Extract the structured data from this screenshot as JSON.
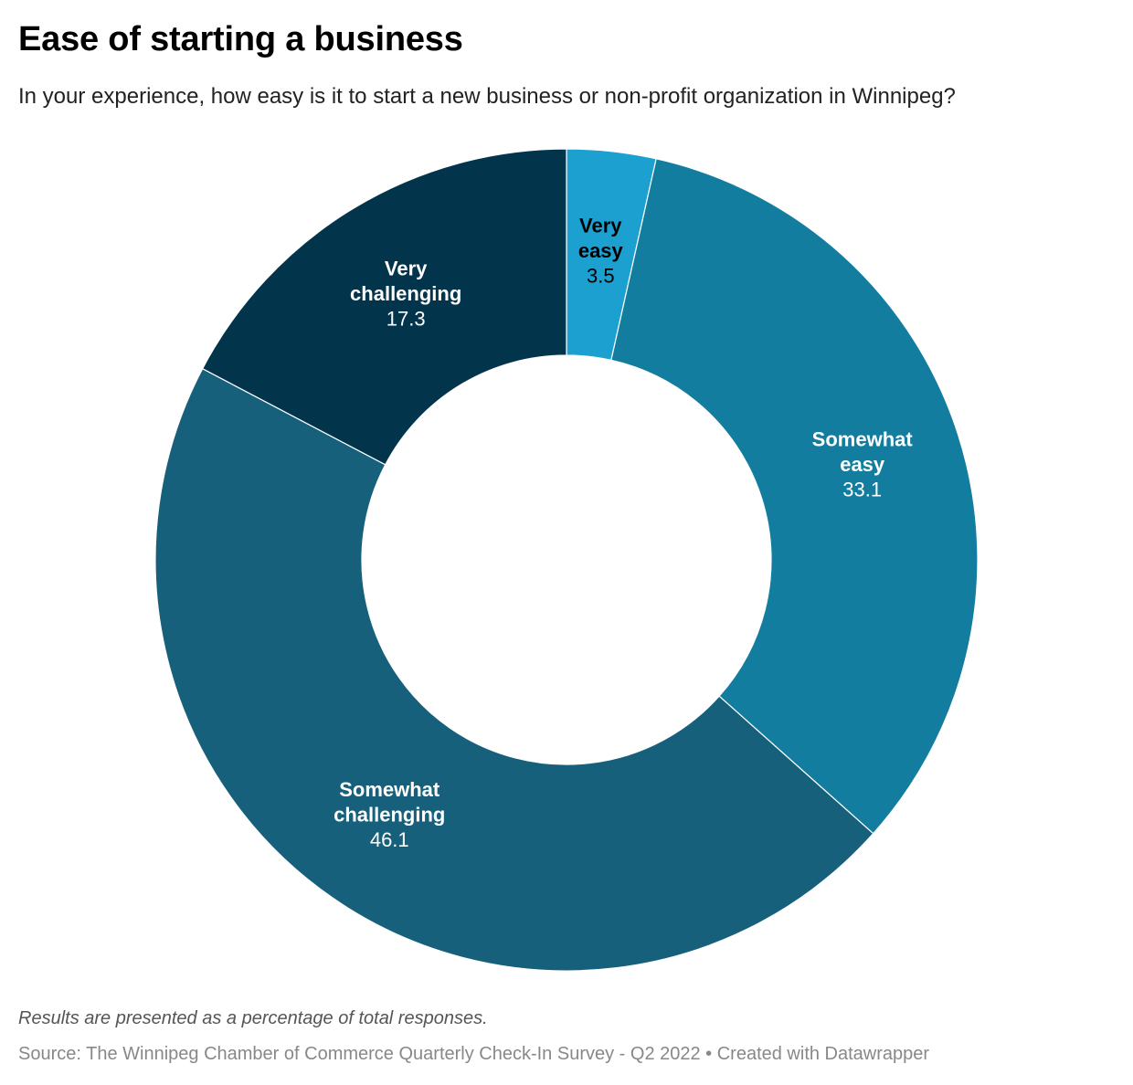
{
  "header": {
    "title": "Ease of starting a business",
    "subtitle": "In your experience, how easy is it to start a new business or non-profit organization in Winnipeg?"
  },
  "chart_data": {
    "type": "pie",
    "donut": true,
    "title": "Ease of starting a business",
    "subtitle": "In your experience, how easy is it to start a new business or non-profit organization in Winnipeg?",
    "slices": [
      {
        "label_lines": [
          "Very",
          "easy"
        ],
        "value": 3.5,
        "value_text": "3.5",
        "color": "#1ba0cf",
        "text_color": "#000000"
      },
      {
        "label_lines": [
          "Somewhat",
          "easy"
        ],
        "value": 33.1,
        "value_text": "33.1",
        "color": "#127d9f",
        "text_color": "#ffffff"
      },
      {
        "label_lines": [
          "Somewhat",
          "challenging"
        ],
        "value": 46.1,
        "value_text": "46.1",
        "color": "#17607b",
        "text_color": "#ffffff"
      },
      {
        "label_lines": [
          "Very",
          "challenging"
        ],
        "value": 17.3,
        "value_text": "17.3",
        "color": "#02344c",
        "text_color": "#ffffff"
      }
    ],
    "notes": "Results are presented as a percentage of total responses.",
    "source": "Source: The Winnipeg Chamber of Commerce Quarterly Check-In Survey - Q2 2022 • Created with Datawrapper"
  },
  "footer": {
    "notes": "Results are presented as a percentage of total responses.",
    "source": "Source: The Winnipeg Chamber of Commerce Quarterly Check-In Survey - Q2 2022 • Created with Datawrapper"
  }
}
